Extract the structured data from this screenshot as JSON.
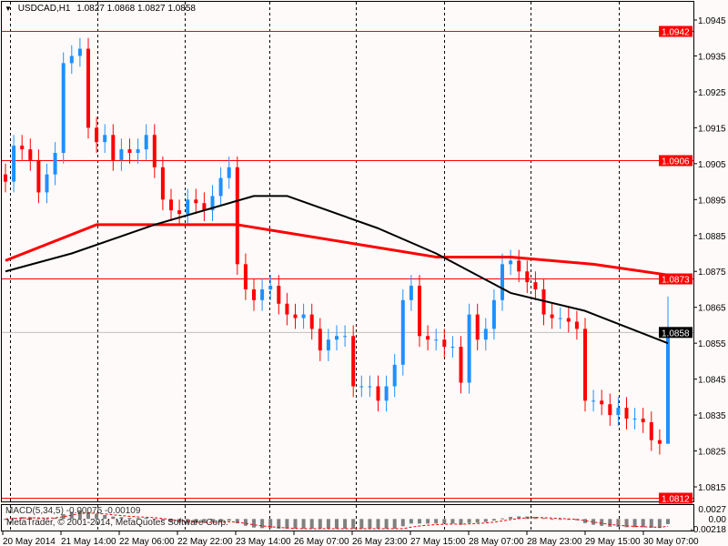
{
  "header": {
    "symbol": "USDCAD,H1",
    "open": "1.0827",
    "high": "1.0868",
    "low": "1.0827",
    "close": "1.0858",
    "menu_icon": "triangle-down-icon"
  },
  "colors": {
    "background": "#fffafa",
    "bull": "#1e90ff",
    "bear": "#ff0000",
    "ma_fast": "#000000",
    "ma_slow": "#ff0000",
    "hline": "#ff0000",
    "bid_line": "#c0c0c0",
    "histogram": "#808080"
  },
  "price_axis": {
    "min": 1.0808,
    "max": 1.0951,
    "ticks": [
      "1.0945",
      "1.0935",
      "1.0925",
      "1.0915",
      "1.0905",
      "1.0895",
      "1.0885",
      "1.0875",
      "1.0865",
      "1.0855",
      "1.0845",
      "1.0835",
      "1.0825",
      "1.0815"
    ]
  },
  "hlines": [
    {
      "price": "1.0942"
    },
    {
      "price": "1.0906"
    },
    {
      "price": "1.0873"
    },
    {
      "price": "1.0812"
    }
  ],
  "bid": {
    "price": "1.0858"
  },
  "candles_close": [
    1.09,
    1.091,
    1.0909,
    1.0906,
    1.0897,
    1.0902,
    1.0908,
    1.0933,
    1.0935,
    1.0937,
    1.0915,
    1.0911,
    1.0913,
    1.0906,
    1.0909,
    1.0908,
    1.0909,
    1.0913,
    1.0904,
    1.0895,
    1.0892,
    1.0891,
    1.0895,
    1.0894,
    1.0892,
    1.0896,
    1.0901,
    1.0904,
    1.0877,
    1.087,
    1.0867,
    1.087,
    1.0871,
    1.0866,
    1.0863,
    1.0862,
    1.0863,
    1.0859,
    1.0853,
    1.0856,
    1.0857,
    1.0857,
    1.0843,
    1.0843,
    1.0843,
    1.0839,
    1.0843,
    1.0849,
    1.0867,
    1.0871,
    1.0857,
    1.0856,
    1.0856,
    1.0854,
    1.0854,
    1.0844,
    1.0863,
    1.0856,
    1.0859,
    1.0867,
    1.0877,
    1.0878,
    1.0875,
    1.0872,
    1.087,
    1.0863,
    1.0862,
    1.0862,
    1.0861,
    1.0859,
    1.0839,
    1.0839,
    1.0838,
    1.0835,
    1.0837,
    1.0834,
    1.0834,
    1.0833,
    1.0828,
    1.0827,
    1.0858
  ],
  "last_candle": {
    "open": 1.0827,
    "high": 1.0868,
    "low": 1.0827,
    "close": 1.0858
  },
  "ma_slow": [
    [
      0,
      1.0878
    ],
    [
      11,
      1.0888
    ],
    [
      28,
      1.0888
    ],
    [
      44,
      1.0882
    ],
    [
      52,
      1.0879
    ],
    [
      61,
      1.0879
    ],
    [
      71,
      1.0877
    ],
    [
      80,
      1.0874
    ]
  ],
  "ma_fast": [
    [
      0,
      1.0875
    ],
    [
      8,
      1.088
    ],
    [
      18,
      1.0888
    ],
    [
      30,
      1.0896
    ],
    [
      34,
      1.0896
    ],
    [
      45,
      1.0887
    ],
    [
      52,
      1.088
    ],
    [
      61,
      1.0869
    ],
    [
      70,
      1.0864
    ],
    [
      80,
      1.0855
    ]
  ],
  "indicator": {
    "label": "MACD(5,34,5) -0.00075 -0.00109",
    "ticks": [
      "0.0027",
      "0.00",
      "-0.00218"
    ],
    "max": 0.0027,
    "min": -0.00218
  },
  "copyright": "MetaTrader, © 2001-2014, MetaQuotes Software Corp.",
  "time_axis": [
    "20 May 2014",
    "21 May 14:00",
    "22 May 06:00",
    "22 May 22:00",
    "23 May 14:00",
    "26 May 07:00",
    "26 May 23:00",
    "27 May 15:00",
    "28 May 07:00",
    "28 May 23:00",
    "29 May 15:00",
    "30 May 07:00"
  ]
}
